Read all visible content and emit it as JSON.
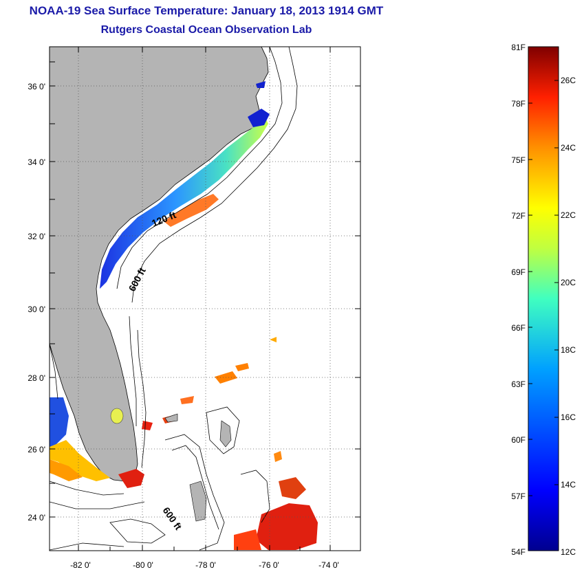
{
  "header": {
    "title": "NOAA-19 Sea Surface Temperature:  January 18, 2013 1914 GMT",
    "subtitle": "Rutgers Coastal Ocean Observation Lab"
  },
  "map": {
    "lat_labels": [
      "36 0'",
      "34 0'",
      "32 0'",
      "30 0'",
      "28 0'",
      "26 0'",
      "24 0'"
    ],
    "lon_labels": [
      "-82 0'",
      "-80 0'",
      "-78 0'",
      "-76 0'",
      "-74 0'"
    ],
    "contours": [
      "120 ft",
      "600 ft",
      "600 ft"
    ],
    "land_color": "#b4b4b4"
  },
  "colorbar": {
    "fahrenheit_labels": [
      "81F",
      "78F",
      "75F",
      "72F",
      "69F",
      "66F",
      "63F",
      "60F",
      "57F",
      "54F"
    ],
    "celsius_labels": [
      "26C",
      "24C",
      "22C",
      "20C",
      "18C",
      "16C",
      "14C",
      "12C"
    ],
    "colors": [
      "#7f0000",
      "#ff0000",
      "#ff8000",
      "#ffff00",
      "#80ff80",
      "#00ffff",
      "#0080ff",
      "#0000ff",
      "#00008f"
    ]
  }
}
